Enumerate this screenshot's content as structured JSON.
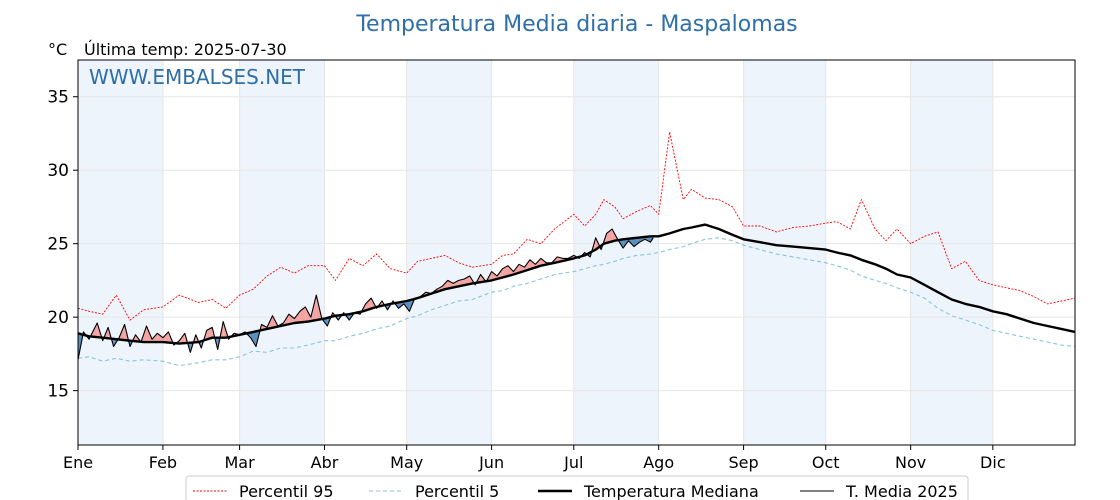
{
  "chart_data": {
    "type": "line",
    "title": "Temperatura Media diaria - Maspalomas",
    "unit_label": "°C",
    "last_temp_label": "Última temp: 2025-07-30",
    "watermark": "WWW.EMBALSES.NET",
    "xlim": [
      1,
      365
    ],
    "ylim": [
      11.3,
      37.5
    ],
    "yticks": [
      15,
      20,
      25,
      30,
      35
    ],
    "month_ticks": [
      {
        "label": "Ene",
        "day": 1
      },
      {
        "label": "Feb",
        "day": 32
      },
      {
        "label": "Mar",
        "day": 60
      },
      {
        "label": "Abr",
        "day": 91
      },
      {
        "label": "May",
        "day": 121
      },
      {
        "label": "Jun",
        "day": 152
      },
      {
        "label": "Jul",
        "day": 182
      },
      {
        "label": "Ago",
        "day": 213
      },
      {
        "label": "Sep",
        "day": 244
      },
      {
        "label": "Oct",
        "day": 274
      },
      {
        "label": "Nov",
        "day": 305
      },
      {
        "label": "Dic",
        "day": 335
      }
    ],
    "shaded_months": [
      [
        1,
        32
      ],
      [
        60,
        91
      ],
      [
        121,
        152
      ],
      [
        182,
        213
      ],
      [
        244,
        274
      ],
      [
        305,
        335
      ]
    ],
    "grid": true,
    "legend_position": "bottom",
    "colors": {
      "p95": "#ff0000",
      "p5": "#87c5dc",
      "median": "#000000",
      "current": "#000000",
      "above": "#f4a3a3",
      "below": "#5b8fbf",
      "title": "#2f6fa8",
      "band": "#eef4fb"
    },
    "series": [
      {
        "name": "Percentil 95",
        "key": "p95",
        "x": [
          1,
          5,
          10,
          15,
          20,
          25,
          32,
          38,
          45,
          50,
          55,
          60,
          65,
          70,
          75,
          80,
          85,
          91,
          95,
          100,
          105,
          110,
          115,
          121,
          125,
          130,
          135,
          140,
          145,
          152,
          156,
          160,
          165,
          170,
          175,
          182,
          186,
          190,
          193,
          197,
          200,
          205,
          210,
          213,
          217,
          222,
          225,
          230,
          235,
          240,
          244,
          250,
          256,
          262,
          268,
          274,
          278,
          283,
          287,
          292,
          296,
          300,
          305,
          310,
          315,
          320,
          325,
          330,
          335,
          340,
          345,
          350,
          355,
          360,
          365
        ],
        "values": [
          20.6,
          20.4,
          20.2,
          21.5,
          19.8,
          20.5,
          20.7,
          21.5,
          21.0,
          21.2,
          20.6,
          21.5,
          21.9,
          22.8,
          23.4,
          23.0,
          23.5,
          23.5,
          22.5,
          24.0,
          23.5,
          24.3,
          23.3,
          23.0,
          23.8,
          24.0,
          24.2,
          23.7,
          23.4,
          23.6,
          24.2,
          24.3,
          25.3,
          25.0,
          26.0,
          27.0,
          26.2,
          27.0,
          28.0,
          27.5,
          26.7,
          27.2,
          27.6,
          27.0,
          32.6,
          28.0,
          28.7,
          28.1,
          28.0,
          27.5,
          26.2,
          26.2,
          25.8,
          26.1,
          26.2,
          26.4,
          26.5,
          26.0,
          28.0,
          26.0,
          25.2,
          26.0,
          25.0,
          25.5,
          25.8,
          23.3,
          23.8,
          22.5,
          22.2,
          22.0,
          21.8,
          21.4,
          20.9,
          21.1,
          21.3
        ]
      },
      {
        "name": "Percentil 5",
        "key": "p5",
        "x": [
          1,
          5,
          10,
          15,
          20,
          25,
          32,
          38,
          45,
          50,
          55,
          60,
          65,
          70,
          75,
          80,
          85,
          91,
          95,
          100,
          105,
          110,
          115,
          121,
          125,
          130,
          135,
          140,
          145,
          152,
          156,
          160,
          165,
          170,
          175,
          182,
          186,
          190,
          193,
          197,
          200,
          205,
          210,
          213,
          217,
          222,
          225,
          230,
          235,
          240,
          244,
          250,
          256,
          262,
          268,
          274,
          278,
          283,
          287,
          292,
          296,
          300,
          305,
          310,
          315,
          320,
          325,
          330,
          335,
          340,
          345,
          350,
          355,
          360,
          365
        ],
        "values": [
          17.2,
          17.3,
          17.0,
          17.2,
          17.0,
          17.1,
          17.0,
          16.7,
          16.9,
          17.1,
          17.1,
          17.3,
          17.7,
          17.6,
          17.9,
          17.9,
          18.1,
          18.4,
          18.4,
          18.7,
          18.9,
          19.2,
          19.4,
          19.9,
          20.1,
          20.5,
          20.8,
          21.1,
          21.2,
          21.7,
          21.8,
          22.1,
          22.3,
          22.6,
          22.9,
          23.1,
          23.3,
          23.5,
          23.6,
          23.8,
          24.0,
          24.2,
          24.3,
          24.4,
          24.6,
          24.8,
          25.0,
          25.3,
          25.4,
          25.2,
          24.9,
          24.6,
          24.3,
          24.1,
          23.9,
          23.7,
          23.5,
          23.2,
          22.8,
          22.5,
          22.3,
          22.0,
          21.7,
          21.3,
          20.6,
          20.1,
          19.8,
          19.5,
          19.1,
          18.9,
          18.7,
          18.5,
          18.3,
          18.1,
          18.0
        ]
      },
      {
        "name": "Temperatura Mediana",
        "key": "median",
        "x": [
          1,
          5,
          10,
          15,
          20,
          25,
          32,
          38,
          45,
          50,
          55,
          60,
          65,
          70,
          75,
          80,
          85,
          91,
          95,
          100,
          105,
          110,
          115,
          121,
          125,
          130,
          135,
          140,
          145,
          152,
          156,
          160,
          165,
          170,
          175,
          182,
          186,
          190,
          193,
          197,
          200,
          205,
          210,
          213,
          217,
          222,
          225,
          230,
          235,
          240,
          244,
          250,
          256,
          262,
          268,
          274,
          278,
          283,
          287,
          292,
          296,
          300,
          305,
          310,
          315,
          320,
          325,
          330,
          335,
          340,
          345,
          350,
          355,
          360,
          365
        ],
        "values": [
          18.9,
          18.7,
          18.6,
          18.5,
          18.4,
          18.3,
          18.3,
          18.2,
          18.3,
          18.6,
          18.6,
          18.8,
          19.0,
          19.2,
          19.4,
          19.6,
          19.7,
          19.9,
          20.1,
          20.2,
          20.4,
          20.7,
          20.9,
          21.1,
          21.3,
          21.6,
          21.9,
          22.1,
          22.3,
          22.5,
          22.7,
          22.9,
          23.2,
          23.5,
          23.7,
          24.0,
          24.2,
          24.6,
          25.0,
          25.2,
          25.3,
          25.4,
          25.5,
          25.5,
          25.7,
          26.0,
          26.1,
          26.3,
          26.0,
          25.6,
          25.3,
          25.1,
          24.9,
          24.8,
          24.7,
          24.6,
          24.4,
          24.2,
          23.9,
          23.6,
          23.3,
          22.9,
          22.7,
          22.2,
          21.7,
          21.2,
          20.9,
          20.7,
          20.4,
          20.2,
          19.9,
          19.6,
          19.4,
          19.2,
          19.0
        ]
      },
      {
        "name": "T. Media 2025",
        "key": "current",
        "x": [
          1,
          3,
          5,
          8,
          10,
          12,
          14,
          16,
          18,
          20,
          22,
          24,
          26,
          28,
          30,
          32,
          34,
          36,
          38,
          40,
          42,
          44,
          46,
          48,
          50,
          52,
          54,
          56,
          58,
          60,
          62,
          64,
          66,
          68,
          70,
          72,
          74,
          76,
          78,
          80,
          82,
          84,
          86,
          88,
          90,
          92,
          94,
          96,
          98,
          100,
          102,
          104,
          106,
          108,
          110,
          112,
          114,
          116,
          118,
          120,
          122,
          124,
          126,
          128,
          130,
          132,
          134,
          136,
          138,
          140,
          142,
          144,
          146,
          148,
          150,
          152,
          154,
          156,
          158,
          160,
          162,
          164,
          166,
          168,
          170,
          172,
          174,
          176,
          178,
          180,
          182,
          184,
          186,
          188,
          190,
          192,
          194,
          196,
          198,
          200,
          202,
          204,
          206,
          208,
          210,
          211
        ],
        "values": [
          17.1,
          19.0,
          18.5,
          19.6,
          18.4,
          19.3,
          18.0,
          18.6,
          19.5,
          18.0,
          18.8,
          18.3,
          19.4,
          18.5,
          18.9,
          18.6,
          19.0,
          18.1,
          18.4,
          18.9,
          17.6,
          18.8,
          17.9,
          19.1,
          19.3,
          17.8,
          19.7,
          18.5,
          18.9,
          18.8,
          19.0,
          18.6,
          18.0,
          19.5,
          19.3,
          20.1,
          19.4,
          19.6,
          20.2,
          19.9,
          20.4,
          20.7,
          20.0,
          21.5,
          19.9,
          19.4,
          20.3,
          19.8,
          20.3,
          19.8,
          20.3,
          20.2,
          20.9,
          21.3,
          20.6,
          21.1,
          20.5,
          21.1,
          20.6,
          20.9,
          20.4,
          21.3,
          21.4,
          21.7,
          21.6,
          21.9,
          22.1,
          22.5,
          22.3,
          22.5,
          22.6,
          22.8,
          22.2,
          22.9,
          22.4,
          23.1,
          22.8,
          23.3,
          23.5,
          23.1,
          23.6,
          23.4,
          23.9,
          23.6,
          24.0,
          23.7,
          23.7,
          24.1,
          24.0,
          24.0,
          24.2,
          24.0,
          24.4,
          24.1,
          25.4,
          24.6,
          25.7,
          26.0,
          25.3,
          24.7,
          25.2,
          24.8,
          25.1,
          25.3,
          25.1,
          25.4
        ]
      }
    ],
    "legend": [
      {
        "key": "p95",
        "label": "Percentil 95"
      },
      {
        "key": "p5",
        "label": "Percentil 5"
      },
      {
        "key": "median",
        "label": "Temperatura Mediana"
      },
      {
        "key": "current",
        "label": "T. Media 2025"
      }
    ]
  }
}
